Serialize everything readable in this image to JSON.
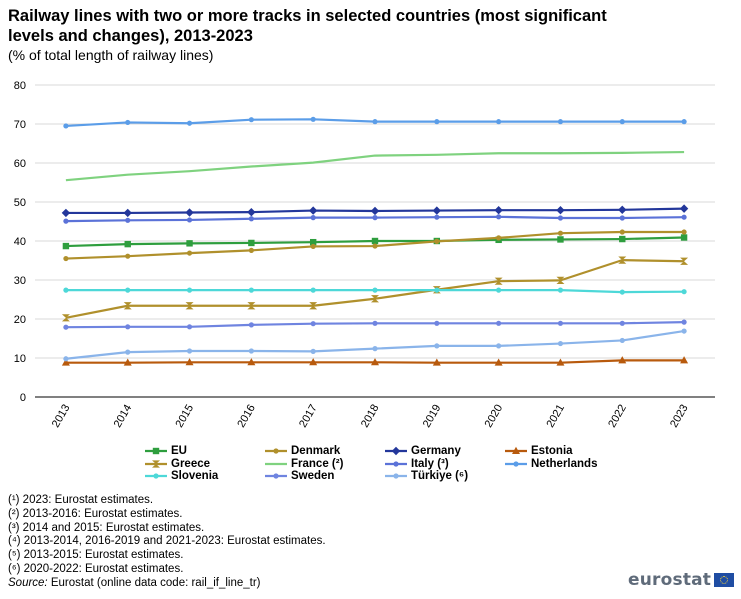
{
  "title": "Railway lines with two or more tracks in selected countries (most significant levels and changes), 2013-2023",
  "subtitle": "(% of total length of railway lines)",
  "chart_data": {
    "type": "line",
    "x": [
      "2013",
      "2014",
      "2015",
      "2016",
      "2017",
      "2018",
      "2019",
      "2020",
      "2021",
      "2022",
      "2023"
    ],
    "ylim": [
      0,
      80
    ],
    "yticks": [
      "0",
      "10",
      "20",
      "30",
      "40",
      "50",
      "60",
      "70",
      "80"
    ],
    "grid": true,
    "legend_position": "bottom",
    "series": [
      {
        "name": "EU",
        "color": "#2e9e3e",
        "marker": "square",
        "values": [
          38.7,
          39.2,
          39.4,
          39.5,
          39.7,
          40.0,
          40.0,
          40.3,
          40.4,
          40.5,
          40.9
        ]
      },
      {
        "name": "Denmark",
        "color": "#b0902c",
        "marker": "circle",
        "values": [
          35.5,
          36.1,
          36.9,
          37.6,
          38.6,
          38.7,
          39.9,
          40.8,
          42.0,
          42.3,
          42.3
        ]
      },
      {
        "name": "Germany",
        "color": "#23379b",
        "marker": "diamond",
        "values": [
          47.2,
          47.2,
          47.3,
          47.4,
          47.8,
          47.7,
          47.8,
          47.9,
          47.9,
          48.0,
          48.3
        ]
      },
      {
        "name": "Estonia",
        "color": "#b85a0d",
        "marker": "triangle",
        "values": [
          8.8,
          8.8,
          8.9,
          8.9,
          8.9,
          8.9,
          8.8,
          8.8,
          8.8,
          9.4,
          9.4
        ]
      },
      {
        "name": "Greece",
        "color": "#b0902c",
        "marker": "hourglass",
        "values": [
          20.3,
          23.4,
          23.4,
          23.4,
          23.4,
          25.2,
          27.5,
          29.7,
          29.9,
          35.1,
          34.8
        ]
      },
      {
        "name": "France (²)",
        "color": "#7fd27f",
        "marker": "none",
        "values": [
          55.6,
          57.0,
          57.9,
          59.1,
          60.1,
          61.9,
          62.1,
          62.5,
          62.5,
          62.6,
          62.8
        ]
      },
      {
        "name": "Italy (³)",
        "color": "#5b72d8",
        "marker": "circle",
        "values": [
          45.1,
          45.3,
          45.4,
          45.7,
          46.0,
          46.0,
          46.1,
          46.2,
          45.9,
          45.9,
          46.1
        ]
      },
      {
        "name": "Netherlands",
        "color": "#5b9de8",
        "marker": "circle",
        "values": [
          69.5,
          70.4,
          70.2,
          71.1,
          71.2,
          70.6,
          70.6,
          70.6,
          70.6,
          70.6,
          70.6
        ]
      },
      {
        "name": "Slovenia",
        "color": "#4dd8d8",
        "marker": "circle",
        "values": [
          27.4,
          27.4,
          27.4,
          27.4,
          27.4,
          27.4,
          27.4,
          27.4,
          27.4,
          26.9,
          27.0
        ]
      },
      {
        "name": "Sweden",
        "color": "#6f84e0",
        "marker": "circle",
        "values": [
          17.9,
          18.0,
          18.0,
          18.5,
          18.8,
          18.9,
          18.9,
          18.9,
          18.9,
          18.9,
          19.2
        ]
      },
      {
        "name": "Türkiye (⁶)",
        "color": "#8ab4ea",
        "marker": "circle",
        "values": [
          9.8,
          11.5,
          11.8,
          11.8,
          11.7,
          12.4,
          13.1,
          13.1,
          13.7,
          14.5,
          16.9
        ]
      }
    ]
  },
  "notes": [
    "(¹) 2023: Eurostat estimates.",
    "(²) 2013-2016: Eurostat estimates.",
    "(³) 2014 and 2015: Eurostat estimates.",
    "(⁴) 2013-2014, 2016-2019 and 2021-2023: Eurostat estimates.",
    "(⁵) 2013-2015: Eurostat estimates.",
    "(⁶) 2020-2022: Eurostat estimates."
  ],
  "source_label": "Source:",
  "source_text": " Eurostat (online data code: rail_if_line_tr)",
  "logo_text": "eurostat"
}
